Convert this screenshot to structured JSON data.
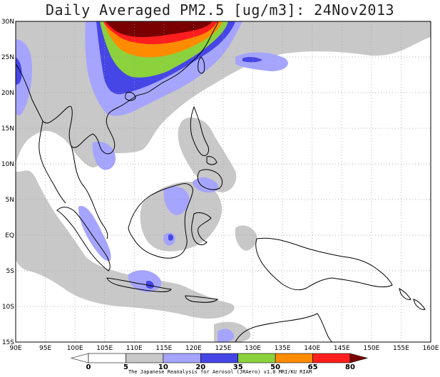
{
  "title": "Daily Averaged PM2.5 [ug/m3]: 24Nov2013",
  "lat_labels": [
    "30N",
    "25N",
    "20N",
    "15N",
    "10N",
    "5N",
    "EQ",
    "5S",
    "10S",
    "15S"
  ],
  "lon_labels": [
    "90E",
    "95E",
    "100E",
    "105E",
    "110E",
    "115E",
    "120E",
    "125E",
    "130E",
    "135E",
    "140E",
    "145E",
    "150E",
    "155E",
    "160E"
  ],
  "colorbar": {
    "levels": [
      "0",
      "5",
      "10",
      "20",
      "35",
      "50",
      "65",
      "80"
    ],
    "colors": [
      "#ffffff",
      "#ffffff",
      "#c8c8c8",
      "#a5a5ff",
      "#4646e6",
      "#8cd23c",
      "#ff8c00",
      "#ff1e1e",
      "#7a0000"
    ]
  },
  "credit": "The Japanese Reanalysis for Aerosol (JRAero) v1.0 MRI/KU RIAM",
  "colors": {
    "gray": "#c8c8c8",
    "lightblue": "#a5a5ff",
    "blue": "#4646e6",
    "green": "#8cd23c",
    "orange": "#ff8c00",
    "red": "#ff1e1e",
    "darkred": "#7a0000"
  }
}
